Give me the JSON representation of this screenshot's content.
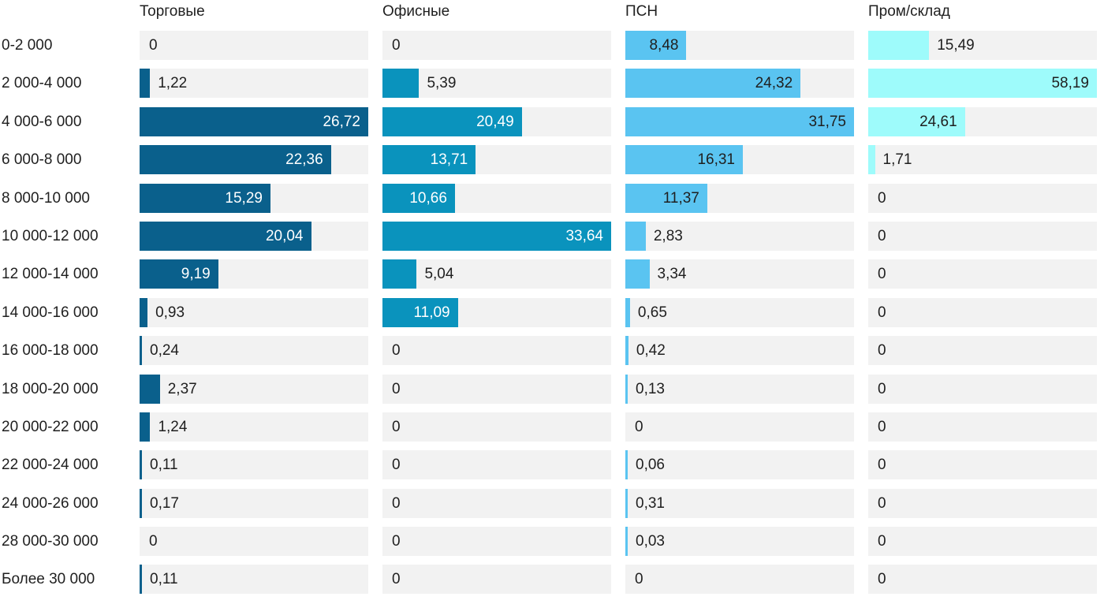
{
  "chart_data": {
    "type": "bar",
    "orientation": "horizontal",
    "title": "",
    "legend_position": "top-as-column-headers",
    "grid": "off",
    "scale_note": "each column scaled independently from 0 to its own max value",
    "track_color": "#f2f2f2",
    "background_color": "#ffffff",
    "value_label_color": "#1f1f1f",
    "categories": [
      "0-2 000",
      "2 000-4 000",
      "4 000-6 000",
      "6 000-8 000",
      "8 000-10 000",
      "10 000-12 000",
      "12 000-14 000",
      "14 000-16 000",
      "16 000-18 000",
      "18 000-20 000",
      "20 000-22 000",
      "22 000-24 000",
      "24 000-26 000",
      "28 000-30 000",
      "Более 30 000"
    ],
    "series": [
      {
        "name": "Торговые",
        "color": "#0a608c",
        "inside_label_color": "#ffffff",
        "max": 26.72,
        "values": [
          0,
          1.22,
          26.72,
          22.36,
          15.29,
          20.04,
          9.19,
          0.93,
          0.24,
          2.37,
          1.24,
          0.11,
          0.17,
          0,
          0.11
        ],
        "labels": [
          "0",
          "1,22",
          "26,72",
          "22,36",
          "15,29",
          "20,04",
          "9,19",
          "0,93",
          "0,24",
          "2,37",
          "1,24",
          "0,11",
          "0,17",
          "0",
          "0,11"
        ],
        "label_placement": [
          "zero",
          "out",
          "in",
          "in",
          "in",
          "in",
          "in",
          "out",
          "out",
          "out",
          "out",
          "out",
          "out",
          "zero",
          "out"
        ]
      },
      {
        "name": "Офисные",
        "color": "#0a93bd",
        "inside_label_color": "#ffffff",
        "max": 33.64,
        "values": [
          0,
          5.39,
          20.49,
          13.71,
          10.66,
          33.64,
          5.04,
          11.09,
          0,
          0,
          0,
          0,
          0,
          0,
          0
        ],
        "labels": [
          "0",
          "5,39",
          "20,49",
          "13,71",
          "10,66",
          "33,64",
          "5,04",
          "11,09",
          "0",
          "0",
          "0",
          "0",
          "0",
          "0",
          "0"
        ],
        "label_placement": [
          "zero",
          "out",
          "in",
          "in",
          "in",
          "in",
          "out",
          "in",
          "zero",
          "zero",
          "zero",
          "zero",
          "zero",
          "zero",
          "zero"
        ]
      },
      {
        "name": "ПСН",
        "color": "#5ac4f1",
        "inside_label_color": "#1f1f1f",
        "max": 31.75,
        "values": [
          8.48,
          24.32,
          31.75,
          16.31,
          11.37,
          2.83,
          3.34,
          0.65,
          0.42,
          0.13,
          0,
          0.06,
          0.31,
          0.03,
          0
        ],
        "labels": [
          "8,48",
          "24,32",
          "31,75",
          "16,31",
          "11,37",
          "2,83",
          "3,34",
          "0,65",
          "0,42",
          "0,13",
          "0",
          "0,06",
          "0,31",
          "0,03",
          "0"
        ],
        "label_placement": [
          "in",
          "in",
          "in",
          "in",
          "in",
          "out",
          "out",
          "out",
          "out",
          "out",
          "zero",
          "out",
          "out",
          "out",
          "zero"
        ]
      },
      {
        "name": "Пром/склад",
        "color": "#9efbfb",
        "inside_label_color": "#1f1f1f",
        "max": 58.19,
        "values": [
          15.49,
          58.19,
          24.61,
          1.71,
          0,
          0,
          0,
          0,
          0,
          0,
          0,
          0,
          0,
          0,
          0
        ],
        "labels": [
          "15,49",
          "58,19",
          "24,61",
          "1,71",
          "0",
          "0",
          "0",
          "0",
          "0",
          "0",
          "0",
          "0",
          "0",
          "0",
          "0"
        ],
        "label_placement": [
          "out",
          "in",
          "in",
          "out",
          "zero",
          "zero",
          "zero",
          "zero",
          "zero",
          "zero",
          "zero",
          "zero",
          "zero",
          "zero",
          "zero"
        ]
      }
    ]
  }
}
